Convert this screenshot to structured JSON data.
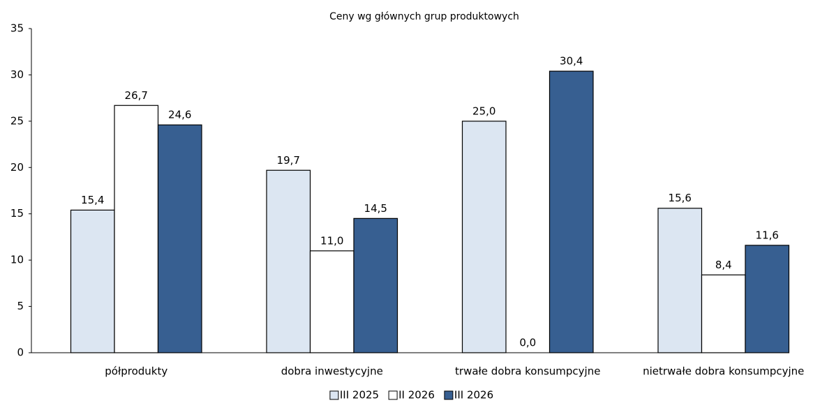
{
  "chart_data": {
    "type": "bar",
    "title": "Ceny wg głównych grup produktowych",
    "categories": [
      "półprodukty",
      "dobra inwestycyjne",
      "trwałe dobra konsumpcyjne",
      "nietrwałe dobra konsumpcyjne"
    ],
    "series": [
      {
        "name": "III 2025",
        "color": "#dce6f2",
        "values": [
          15.4,
          19.7,
          25.0,
          15.6
        ],
        "value_labels": [
          "15,4",
          "19,7",
          "25,0",
          "15,6"
        ]
      },
      {
        "name": "II 2026",
        "color": "#ffffff",
        "values": [
          26.7,
          11.0,
          0.0,
          8.4
        ],
        "value_labels": [
          "26,7",
          "11,0",
          "0,0",
          "8,4"
        ]
      },
      {
        "name": "III 2026",
        "color": "#375f91",
        "values": [
          24.6,
          14.5,
          30.4,
          11.6
        ],
        "value_labels": [
          "24,6",
          "14,5",
          "30,4",
          "11,6"
        ]
      }
    ],
    "ylim": [
      0,
      35
    ],
    "yticks": [
      0,
      5,
      10,
      15,
      20,
      25,
      30,
      35
    ],
    "legend": "bottom"
  }
}
